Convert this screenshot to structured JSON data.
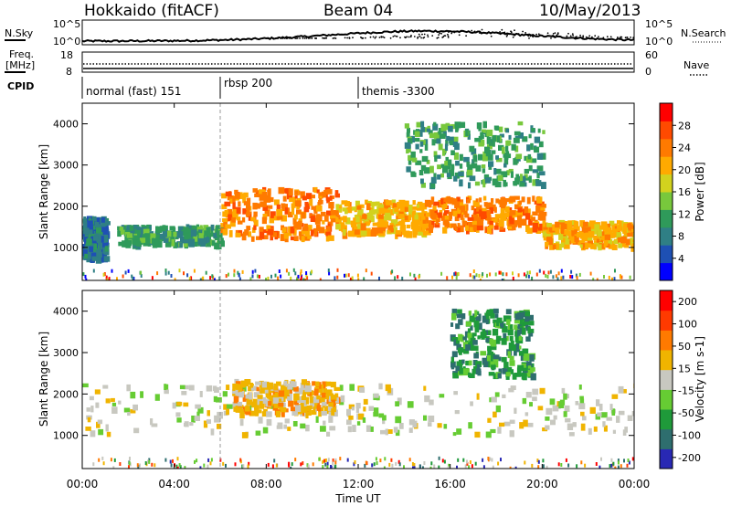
{
  "header": {
    "title": "Hokkaido (fitACF)",
    "beam": "Beam 04",
    "date": "10/May/2013"
  },
  "noise_panel": {
    "left_label": "N.Sky",
    "right_label": "N.Search",
    "tick_top": "10^5",
    "tick_bottom": "10^0"
  },
  "freq_panel": {
    "left_label_1": "Freq.",
    "left_label_2": "[MHz]",
    "right_label": "Nave",
    "left_ticks": [
      "18",
      "8"
    ],
    "right_ticks": [
      "60",
      "0"
    ]
  },
  "cpid_panel": {
    "label": "CPID",
    "segments": [
      {
        "name": "normal (fast) 151",
        "start_hour": 0
      },
      {
        "name": "rbsp 200",
        "start_hour": 6
      },
      {
        "name": "themis -3300",
        "start_hour": 12
      }
    ]
  },
  "chart_data": [
    {
      "type": "heatmap",
      "quantity": "Power",
      "ylabel": "Slant Range [km]",
      "ylim": [
        200,
        4500
      ],
      "yticks": [
        "1000",
        "2000",
        "3000",
        "4000"
      ],
      "xlim": [
        0,
        24
      ],
      "colorbar": {
        "label": "Power [dB]",
        "ticks": [
          "4",
          "8",
          "12",
          "16",
          "20",
          "24",
          "28"
        ],
        "colors": [
          "#0000ff",
          "#1e50b4",
          "#2f7f85",
          "#2f9a5a",
          "#78c83c",
          "#d2d21e",
          "#ffaa00",
          "#ff7a00",
          "#ff4a00",
          "#ff0000"
        ]
      },
      "echo_regions": [
        {
          "from_hour": 0.0,
          "to_hour": 1.0,
          "range_km": [
            700,
            1700
          ],
          "power_db": 8
        },
        {
          "from_hour": 1.5,
          "to_hour": 6.0,
          "range_km": [
            1050,
            1500
          ],
          "power_db": 12
        },
        {
          "from_hour": 6.0,
          "to_hour": 11.0,
          "range_km": [
            1200,
            2400
          ],
          "power_db": 24
        },
        {
          "from_hour": 11.0,
          "to_hour": 15.0,
          "range_km": [
            1300,
            2100
          ],
          "power_db": 20
        },
        {
          "from_hour": 15.0,
          "to_hour": 20.0,
          "range_km": [
            1400,
            2200
          ],
          "power_db": 26
        },
        {
          "from_hour": 20.0,
          "to_hour": 24.0,
          "range_km": [
            1000,
            1600
          ],
          "power_db": 22
        },
        {
          "from_hour": 14.0,
          "to_hour": 20.0,
          "range_km": [
            2500,
            4000
          ],
          "power_db": 12
        }
      ]
    },
    {
      "type": "heatmap",
      "quantity": "Velocity",
      "ylabel": "Slant Range [km]",
      "ylim": [
        200,
        4500
      ],
      "yticks": [
        "1000",
        "2000",
        "3000",
        "4000"
      ],
      "xlim": [
        0,
        24
      ],
      "colorbar": {
        "label": "Velocity [m s-1]",
        "ticks": [
          "200",
          "100",
          "50",
          "15",
          "-15",
          "-50",
          "-100",
          "-200"
        ],
        "colors": [
          "#2828b4",
          "#2e6e6e",
          "#1f9a3a",
          "#66cc33",
          "#c8c8c0",
          "#f0b400",
          "#ff7a00",
          "#ff3a00",
          "#ff0000"
        ]
      },
      "echo_regions": [
        {
          "from_hour": 0.0,
          "to_hour": 24.0,
          "range_km": [
            1000,
            2200
          ],
          "velocity_ms": 0
        },
        {
          "from_hour": 6.5,
          "to_hour": 11.0,
          "range_km": [
            1500,
            2300
          ],
          "velocity_ms": -40
        },
        {
          "from_hour": 16.0,
          "to_hour": 19.5,
          "range_km": [
            2400,
            4000
          ],
          "velocity_ms": 40
        }
      ]
    }
  ],
  "time_axis": {
    "ticks": [
      "00:00",
      "04:00",
      "08:00",
      "12:00",
      "16:00",
      "20:00",
      "00:00"
    ],
    "xlabel": "Time UT"
  }
}
